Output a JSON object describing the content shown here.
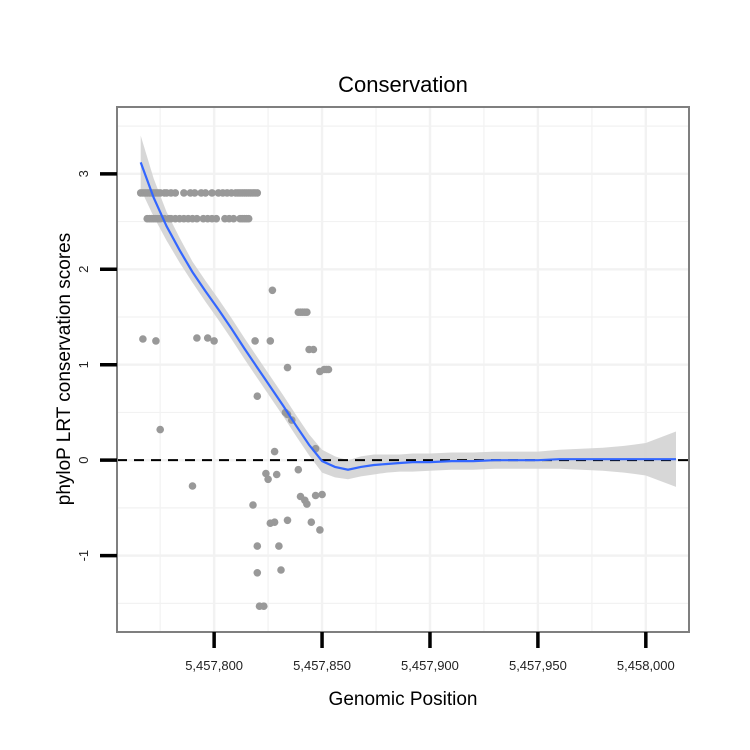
{
  "chart_data": {
    "type": "scatter",
    "title": "Conservation",
    "xlabel": "Genomic Position",
    "ylabel": "phyloP LRT conservation scores",
    "xlim": [
      5457755,
      5458020
    ],
    "ylim": [
      -1.8,
      3.7
    ],
    "x_ticks": [
      5457800,
      5457850,
      5457900,
      5457950,
      5458000
    ],
    "x_tick_labels": [
      "5,457,800",
      "5,457,850",
      "5,457,900",
      "5,457,950",
      "5,458,000"
    ],
    "y_ticks": [
      -1,
      0,
      1,
      2,
      3
    ],
    "y_tick_labels": [
      "-1",
      "0",
      "1",
      "2",
      "3"
    ],
    "grid": true,
    "reference_line": {
      "y": 0,
      "style": "dashed"
    },
    "colors": {
      "points": "#999999",
      "smooth": "#3366ff",
      "ribbon": "#d3d3d3",
      "panel_border": "#7f7f7f",
      "grid": "#f2f2f2"
    },
    "points": {
      "name": "scores",
      "x": [
        5457766,
        5457767,
        5457768,
        5457769,
        5457770,
        5457771,
        5457772,
        5457773,
        5457774,
        5457775,
        5457777,
        5457778,
        5457780,
        5457782,
        5457786,
        5457789,
        5457791,
        5457794,
        5457796,
        5457799,
        5457802,
        5457804,
        5457806,
        5457808,
        5457810,
        5457811,
        5457812,
        5457813,
        5457814,
        5457815,
        5457816,
        5457817,
        5457818,
        5457819,
        5457820,
        5457769,
        5457770,
        5457771,
        5457772,
        5457773,
        5457774,
        5457775,
        5457777,
        5457779,
        5457780,
        5457782,
        5457784,
        5457786,
        5457788,
        5457790,
        5457792,
        5457795,
        5457797,
        5457799,
        5457801,
        5457805,
        5457807,
        5457809,
        5457812,
        5457813,
        5457814,
        5457815,
        5457816,
        5457767,
        5457773,
        5457775,
        5457792,
        5457797,
        5457800,
        5457819,
        5457826,
        5457827,
        5457834,
        5457839,
        5457840,
        5457841,
        5457842,
        5457843,
        5457844,
        5457846,
        5457849,
        5457851,
        5457852,
        5457853,
        5457820,
        5457833,
        5457834,
        5457836,
        5457847,
        5457828,
        5457824,
        5457825,
        5457829,
        5457839,
        5457840,
        5457842,
        5457843,
        5457847,
        5457850,
        5457790,
        5457818,
        5457826,
        5457828,
        5457834,
        5457845,
        5457849,
        5457820,
        5457830,
        5457831,
        5457820,
        5457821,
        5457823
      ],
      "y": [
        2.8,
        2.8,
        2.8,
        2.8,
        2.8,
        2.8,
        2.8,
        2.8,
        2.8,
        2.8,
        2.8,
        2.8,
        2.8,
        2.8,
        2.8,
        2.8,
        2.8,
        2.8,
        2.8,
        2.8,
        2.8,
        2.8,
        2.8,
        2.8,
        2.8,
        2.8,
        2.8,
        2.8,
        2.8,
        2.8,
        2.8,
        2.8,
        2.8,
        2.8,
        2.8,
        2.53,
        2.53,
        2.53,
        2.53,
        2.53,
        2.53,
        2.53,
        2.53,
        2.53,
        2.53,
        2.53,
        2.53,
        2.53,
        2.53,
        2.53,
        2.53,
        2.53,
        2.53,
        2.53,
        2.53,
        2.53,
        2.53,
        2.53,
        2.53,
        2.53,
        2.53,
        2.53,
        2.53,
        1.27,
        1.25,
        0.32,
        1.28,
        1.28,
        1.25,
        1.25,
        1.25,
        1.78,
        0.97,
        1.55,
        1.55,
        1.55,
        1.55,
        1.55,
        1.16,
        1.16,
        0.93,
        0.95,
        0.95,
        0.95,
        0.67,
        0.5,
        0.48,
        0.42,
        0.12,
        0.09,
        -0.14,
        -0.2,
        -0.15,
        -0.1,
        -0.38,
        -0.42,
        -0.46,
        -0.37,
        -0.36,
        -0.27,
        -0.47,
        -0.66,
        -0.65,
        -0.63,
        -0.65,
        -0.73,
        -0.9,
        -0.9,
        -1.15,
        -1.18,
        -1.53,
        -1.53
      ]
    },
    "smooth": {
      "name": "loess fit",
      "x": [
        5457766,
        5457772,
        5457778,
        5457784,
        5457790,
        5457796,
        5457802,
        5457808,
        5457814,
        5457820,
        5457826,
        5457832,
        5457838,
        5457844,
        5457850,
        5457856,
        5457862,
        5457868,
        5457874,
        5457880,
        5457886,
        5457892,
        5457900,
        5457910,
        5457920,
        5457930,
        5457940,
        5457950,
        5457960,
        5457970,
        5457980,
        5457990,
        5458000,
        5458014
      ],
      "y": [
        3.12,
        2.75,
        2.45,
        2.2,
        1.97,
        1.77,
        1.58,
        1.38,
        1.17,
        0.97,
        0.77,
        0.57,
        0.36,
        0.16,
        -0.01,
        -0.07,
        -0.1,
        -0.07,
        -0.05,
        -0.04,
        -0.03,
        -0.02,
        -0.02,
        -0.01,
        -0.01,
        0.0,
        0.0,
        0.0,
        0.01,
        0.01,
        0.01,
        0.01,
        0.01,
        0.01
      ],
      "ci_low": [
        2.84,
        2.55,
        2.3,
        2.07,
        1.86,
        1.66,
        1.47,
        1.27,
        1.06,
        0.86,
        0.66,
        0.46,
        0.25,
        0.05,
        -0.13,
        -0.18,
        -0.2,
        -0.17,
        -0.15,
        -0.13,
        -0.12,
        -0.12,
        -0.11,
        -0.1,
        -0.1,
        -0.09,
        -0.09,
        -0.09,
        -0.09,
        -0.1,
        -0.11,
        -0.13,
        -0.16,
        -0.28
      ],
      "ci_high": [
        3.4,
        2.95,
        2.6,
        2.33,
        2.08,
        1.88,
        1.69,
        1.49,
        1.28,
        1.08,
        0.88,
        0.68,
        0.47,
        0.27,
        0.11,
        0.04,
        0.0,
        0.04,
        0.06,
        0.06,
        0.06,
        0.07,
        0.07,
        0.08,
        0.08,
        0.09,
        0.09,
        0.09,
        0.11,
        0.12,
        0.13,
        0.15,
        0.18,
        0.3
      ]
    }
  }
}
